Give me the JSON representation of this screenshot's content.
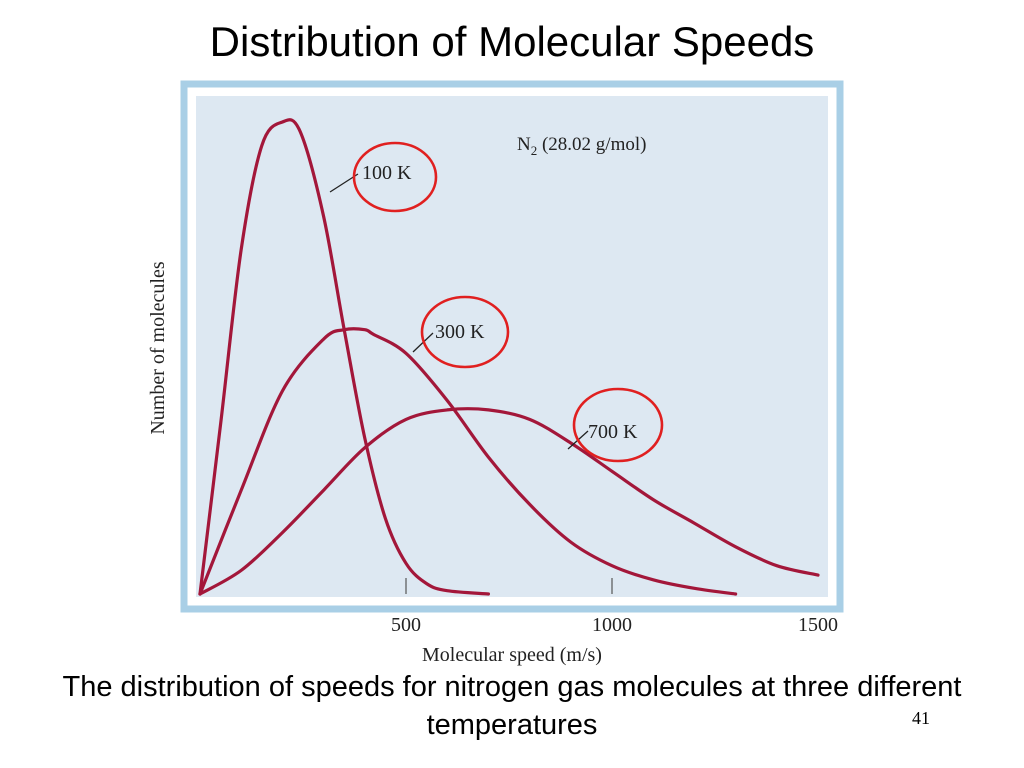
{
  "slide": {
    "title": "Distribution of Molecular Speeds",
    "caption": "The distribution of speeds for nitrogen gas molecules at three different temperatures",
    "slide_number": "41"
  },
  "colors": {
    "panel_fill": "#dde8f2",
    "panel_border": "#a9cfe6",
    "curve": "#a3173a",
    "circle": "#e02020"
  },
  "chart_data": {
    "type": "line",
    "title": "",
    "annotation": "N₂ (28.02 g/mol)",
    "xlabel": "Molecular speed (m/s)",
    "ylabel": "Number of molecules",
    "xlim": [
      0,
      1500
    ],
    "ylim": [
      0,
      1
    ],
    "x_ticks": [
      500,
      1000,
      1500
    ],
    "x_tick_labels": [
      "500",
      "1000",
      "1500"
    ],
    "grid": false,
    "series": [
      {
        "name": "100 K",
        "x": [
          0,
          50,
          100,
          150,
          200,
          243,
          300,
          350,
          400,
          450,
          500,
          550,
          600,
          700
        ],
        "y": [
          0,
          0.36,
          0.73,
          0.95,
          1.0,
          0.98,
          0.8,
          0.56,
          0.33,
          0.16,
          0.065,
          0.022,
          0.007,
          0.0
        ]
      },
      {
        "name": "300 K",
        "x": [
          0,
          100,
          200,
          300,
          350,
          400,
          421,
          500,
          600,
          700,
          800,
          900,
          1000,
          1100,
          1200,
          1300
        ],
        "y": [
          0,
          0.22,
          0.43,
          0.54,
          0.56,
          0.56,
          0.55,
          0.51,
          0.41,
          0.29,
          0.19,
          0.11,
          0.06,
          0.03,
          0.012,
          0.0
        ]
      },
      {
        "name": "700 K",
        "x": [
          0,
          100,
          200,
          300,
          400,
          500,
          600,
          700,
          800,
          900,
          1000,
          1100,
          1200,
          1300,
          1400,
          1500
        ],
        "y": [
          0,
          0.05,
          0.13,
          0.22,
          0.31,
          0.37,
          0.39,
          0.39,
          0.37,
          0.32,
          0.26,
          0.2,
          0.15,
          0.1,
          0.06,
          0.04
        ]
      }
    ],
    "highlighted_labels": [
      "100 K",
      "300 K",
      "700 K"
    ]
  }
}
